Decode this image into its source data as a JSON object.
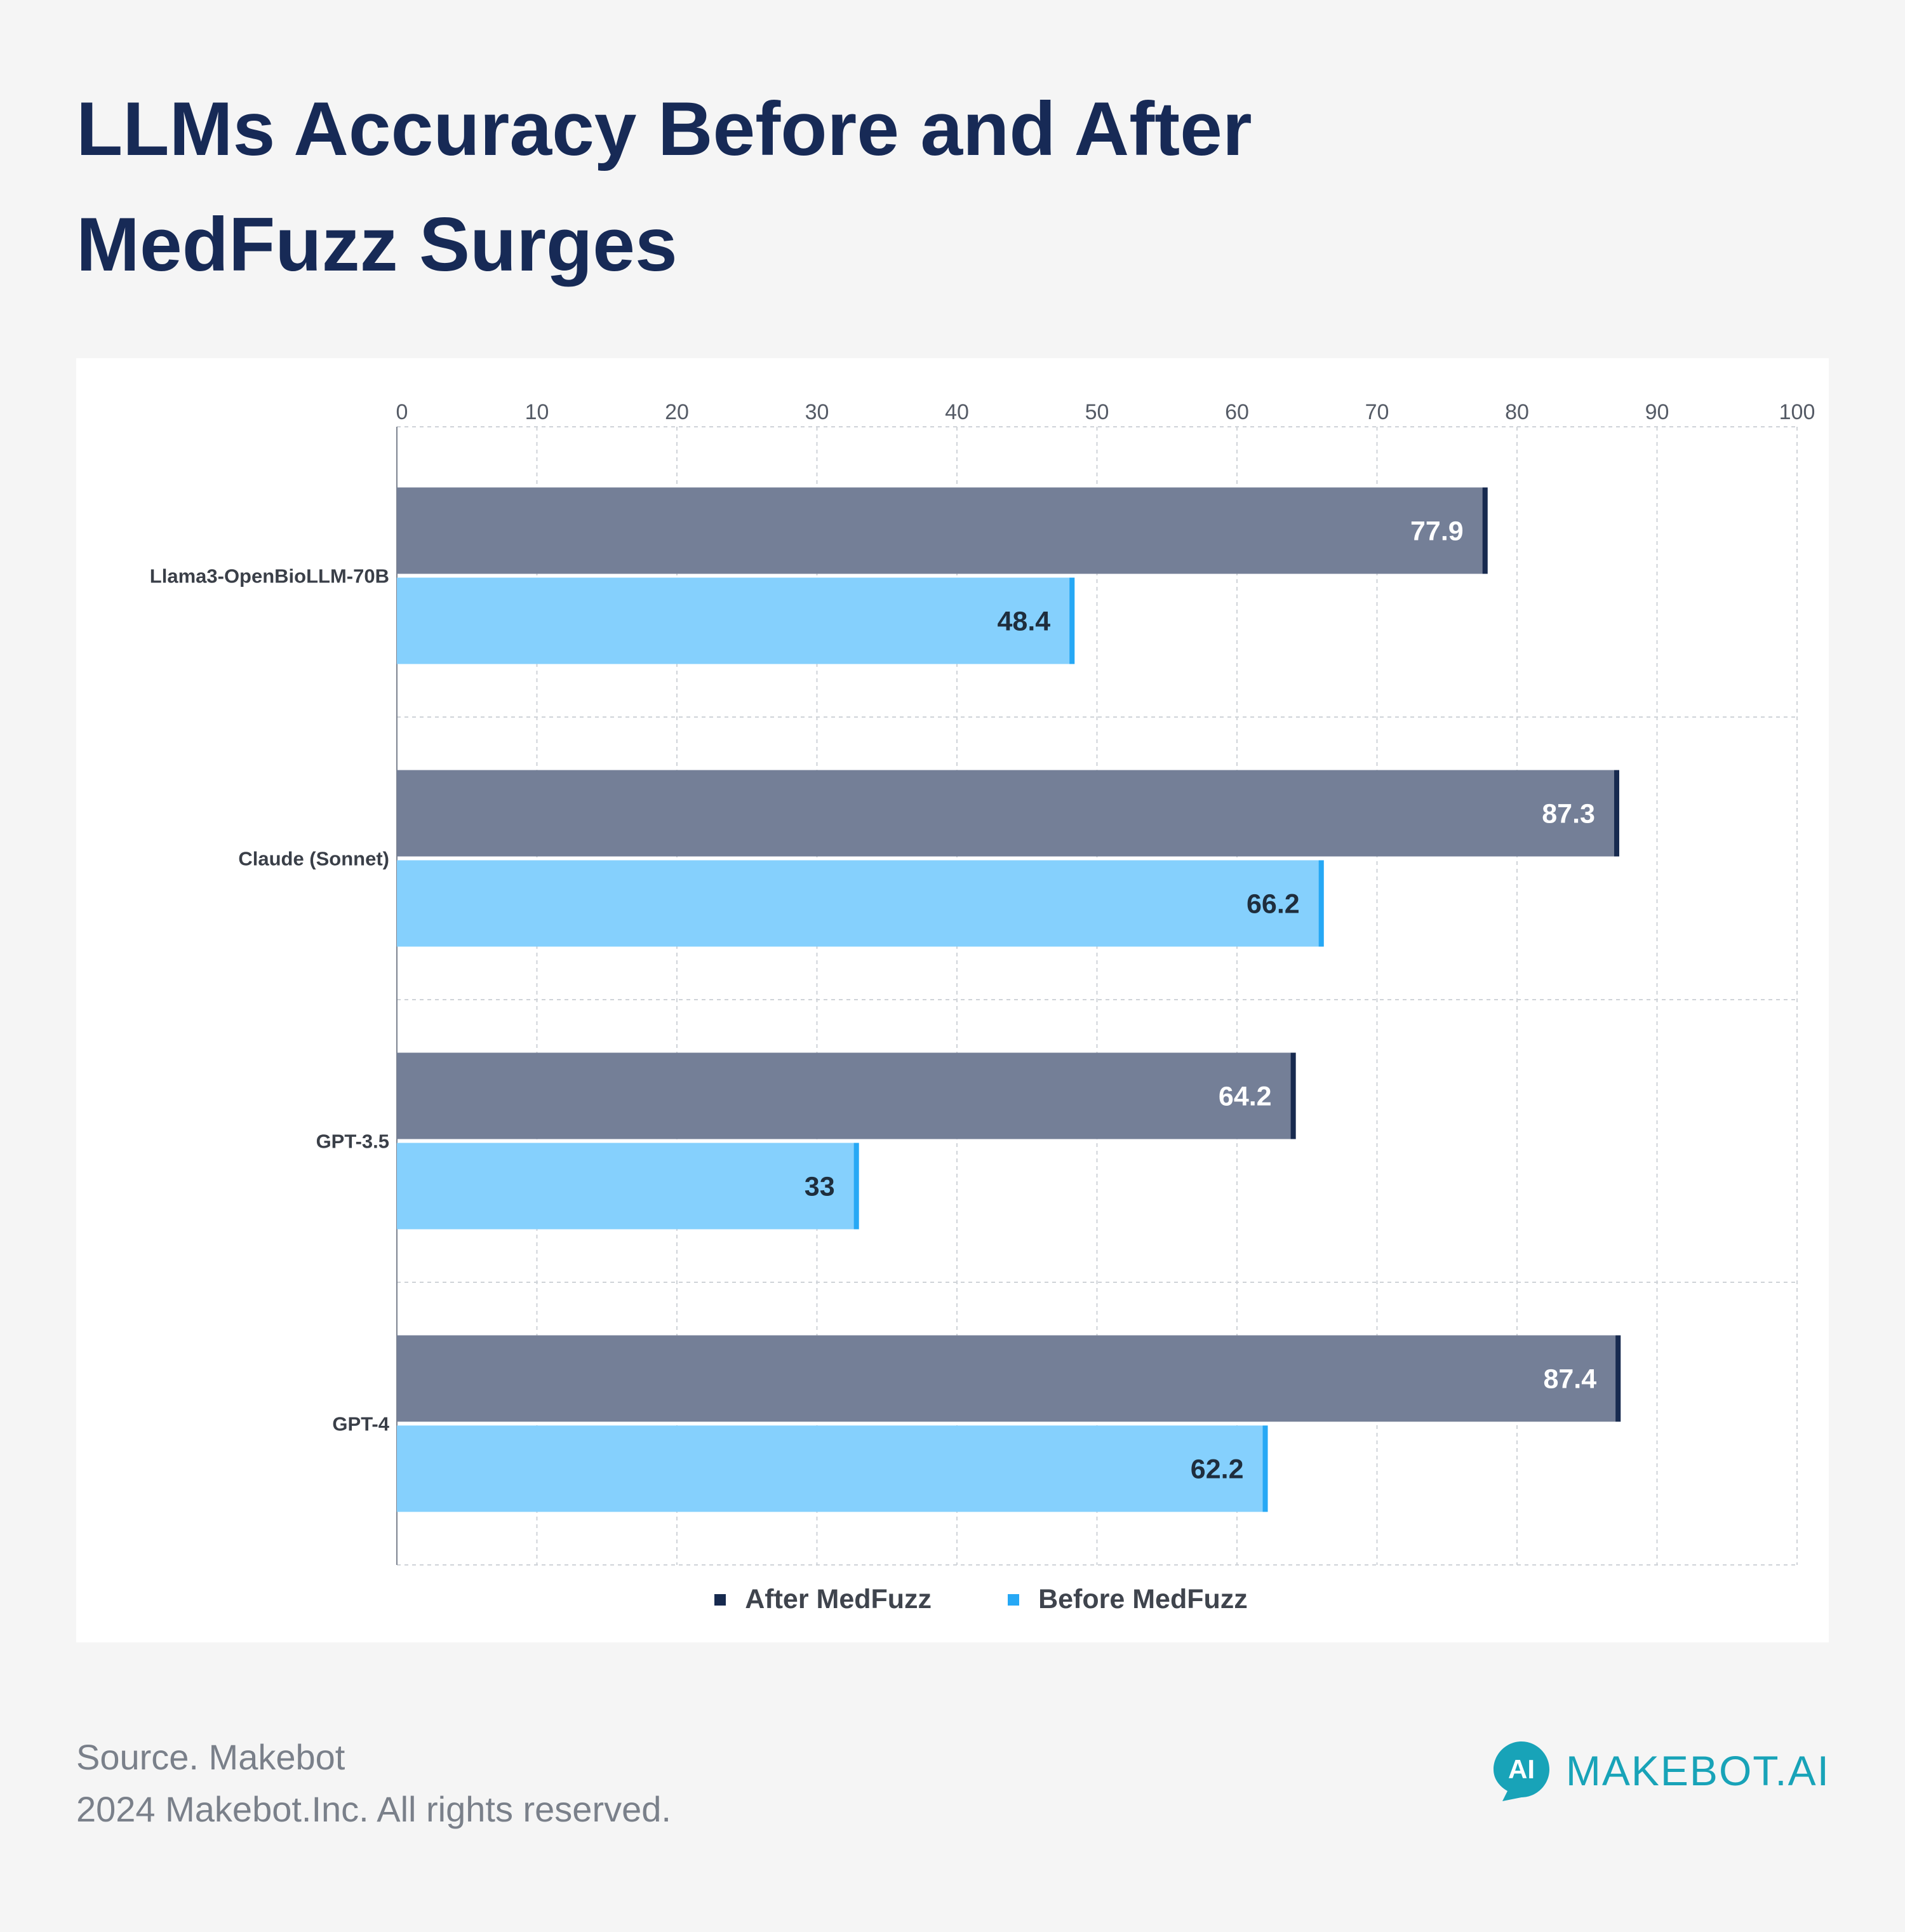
{
  "title": "LLMs Accuracy Before and After MedFuzz Surges",
  "colors": {
    "after_fill": "#747f97",
    "after_cap": "#172a4f",
    "before_fill": "#85d0fd",
    "before_cap": "#26a8f5",
    "after_label": "#ffffff",
    "before_label": "#1f2e3d",
    "title": "#172a56",
    "brand": "#18a3b8"
  },
  "chart_data": {
    "type": "bar",
    "orientation": "horizontal",
    "title": "LLMs Accuracy Before and After MedFuzz Surges",
    "categories": [
      "Llama3-OpenBioLLM-70B",
      "Claude (Sonnet)",
      "GPT-3.5",
      "GPT-4"
    ],
    "series": [
      {
        "name": "After MedFuzz",
        "values": [
          77.9,
          87.3,
          64.2,
          87.4
        ]
      },
      {
        "name": "Before MedFuzz",
        "values": [
          48.4,
          66.2,
          33,
          62.2
        ]
      }
    ],
    "xlim": [
      0,
      100
    ],
    "xticks": [
      0,
      10,
      20,
      30,
      40,
      50,
      60,
      70,
      80,
      90,
      100
    ],
    "xaxis_position": "top",
    "grid": true,
    "legend_position": "bottom-center"
  },
  "footer": {
    "source": "Source. Makebot",
    "copyright": "2024 Makebot.Inc. All rights reserved."
  },
  "brand": {
    "logo_text": "AI",
    "name": "MAKEBOT.AI",
    "icon": "speech-bubble-logo-icon"
  }
}
